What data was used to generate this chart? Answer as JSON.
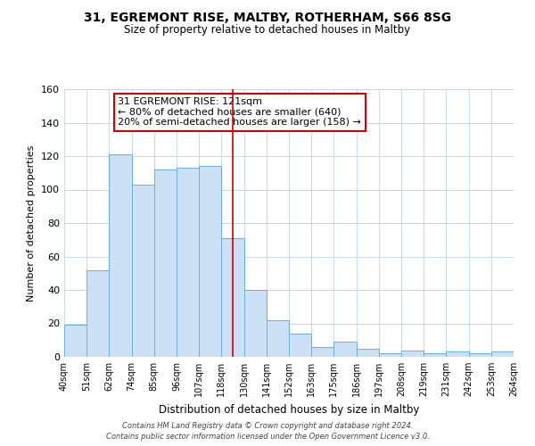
{
  "title": "31, EGREMONT RISE, MALTBY, ROTHERHAM, S66 8SG",
  "subtitle": "Size of property relative to detached houses in Maltby",
  "xlabel": "Distribution of detached houses by size in Maltby",
  "ylabel": "Number of detached properties",
  "bin_labels": [
    "40sqm",
    "51sqm",
    "62sqm",
    "74sqm",
    "85sqm",
    "96sqm",
    "107sqm",
    "118sqm",
    "130sqm",
    "141sqm",
    "152sqm",
    "163sqm",
    "175sqm",
    "186sqm",
    "197sqm",
    "208sqm",
    "219sqm",
    "231sqm",
    "242sqm",
    "253sqm",
    "264sqm"
  ],
  "bar_heights": [
    19,
    52,
    121,
    103,
    112,
    113,
    114,
    71,
    40,
    22,
    14,
    6,
    9,
    5,
    2,
    4,
    2,
    3,
    2,
    3
  ],
  "bar_color": "#cce0f5",
  "bar_edge_color": "#6baed6",
  "vline_x_idx": 7.5,
  "vline_color": "#cc0000",
  "annotation_box_text": "31 EGREMONT RISE: 121sqm\n← 80% of detached houses are smaller (640)\n20% of semi-detached houses are larger (158) →",
  "ylim": [
    0,
    160
  ],
  "yticks": [
    0,
    20,
    40,
    60,
    80,
    100,
    120,
    140,
    160
  ],
  "footer_line1": "Contains HM Land Registry data © Crown copyright and database right 2024.",
  "footer_line2": "Contains public sector information licensed under the Open Government Licence v3.0.",
  "bg_color": "#ffffff",
  "grid_color": "#c8d8ec"
}
